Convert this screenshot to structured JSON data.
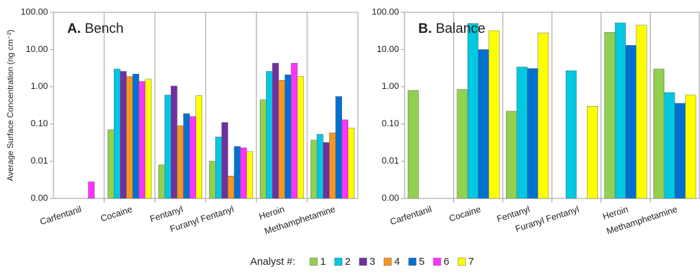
{
  "chart_data": [
    {
      "type": "bar",
      "label": "A.",
      "title": "Bench",
      "y_label": "Average Surface Concentration (ng cm⁻²)",
      "log_scale": true,
      "ylim": [
        0.001,
        100
      ],
      "yticks": [
        {
          "value": 0.001,
          "label": "0.00"
        },
        {
          "value": 0.01,
          "label": "0.01"
        },
        {
          "value": 0.1,
          "label": "0.10"
        },
        {
          "value": 1,
          "label": "1.00"
        },
        {
          "value": 10,
          "label": "10.00"
        },
        {
          "value": 100,
          "label": "100.00"
        }
      ],
      "categories": [
        "Carfentanil",
        "Cocaine",
        "Fentanyl",
        "Furanyl Fentanyl",
        "Heroin",
        "Methamphetamine"
      ],
      "series": [
        {
          "name": "1",
          "color": "#92d050",
          "values": [
            null,
            0.07,
            0.008,
            0.01,
            0.45,
            0.037
          ]
        },
        {
          "name": "2",
          "color": "#00c8e0",
          "values": [
            null,
            3.0,
            0.6,
            0.045,
            2.6,
            0.053
          ]
        },
        {
          "name": "3",
          "color": "#7030a0",
          "values": [
            null,
            2.6,
            1.05,
            0.11,
            4.3,
            0.032
          ]
        },
        {
          "name": "4",
          "color": "#f79621",
          "values": [
            null,
            1.9,
            0.09,
            0.004,
            1.5,
            0.058
          ]
        },
        {
          "name": "5",
          "color": "#0070d0",
          "values": [
            null,
            2.2,
            0.19,
            0.025,
            2.1,
            0.55
          ]
        },
        {
          "name": "6",
          "color": "#ff33ff",
          "values": [
            0.0028,
            1.4,
            0.16,
            0.023,
            4.3,
            0.13
          ]
        },
        {
          "name": "7",
          "color": "#ffff00",
          "values": [
            null,
            1.6,
            0.58,
            0.018,
            1.9,
            0.078
          ]
        }
      ]
    },
    {
      "type": "bar",
      "label": "B.",
      "title": "Balance",
      "log_scale": true,
      "ylim": [
        0.001,
        100
      ],
      "yticks": [
        {
          "value": 0.001,
          "label": "0.00"
        },
        {
          "value": 0.01,
          "label": "0.01"
        },
        {
          "value": 0.1,
          "label": "0.10"
        },
        {
          "value": 1,
          "label": "1.00"
        },
        {
          "value": 10,
          "label": "10.00"
        },
        {
          "value": 100,
          "label": "100.00"
        }
      ],
      "categories": [
        "Carfentanil",
        "Cocaine",
        "Fentanyl",
        "Furanyl Fentanyl",
        "Heroin",
        "Methamphetamine"
      ],
      "series": [
        {
          "color": "#92d050",
          "values": [
            0.8,
            0.85,
            0.22,
            null,
            29,
            3.0
          ]
        },
        {
          "color": "#00c8e0",
          "values": [
            null,
            50,
            3.4,
            2.7,
            52,
            0.7
          ]
        },
        {
          "color": "#0070d0",
          "values": [
            null,
            10,
            3.1,
            null,
            13,
            0.36
          ]
        },
        {
          "color": "#ffff00",
          "values": [
            null,
            32,
            28,
            0.3,
            45,
            0.6
          ]
        }
      ]
    }
  ],
  "legend_title": "Analyst #:"
}
